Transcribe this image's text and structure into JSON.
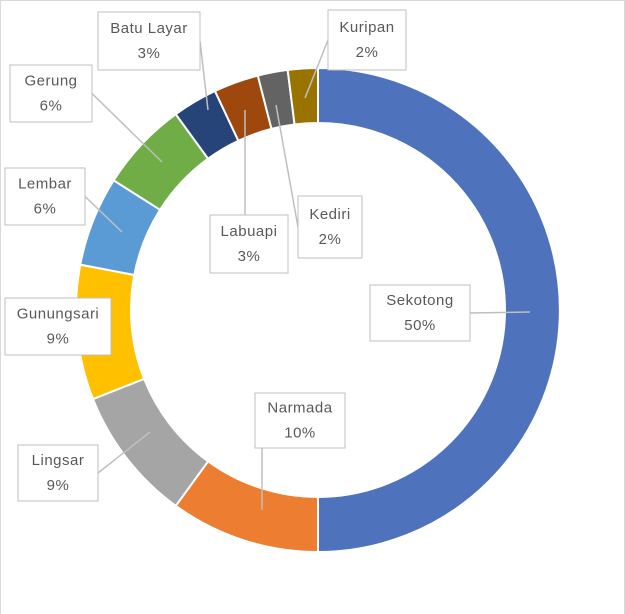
{
  "chart_data": {
    "type": "donut",
    "categories": [
      "Sekotong",
      "Narmada",
      "Lingsar",
      "Gunungsari",
      "Lembar",
      "Gerung",
      "Batu Layar",
      "Labuapi",
      "Kediri",
      "Kuripan"
    ],
    "values": [
      50,
      10,
      9,
      9,
      6,
      6,
      3,
      3,
      2,
      2
    ],
    "value_labels": [
      "50%",
      "10%",
      "9%",
      "9%",
      "6%",
      "6%",
      "3%",
      "3%",
      "2%",
      "2%"
    ],
    "colors": [
      "#4f72bd",
      "#ed7d31",
      "#a5a5a5",
      "#ffc000",
      "#5b9bd5",
      "#70ad47",
      "#264478",
      "#9e480e",
      "#636363",
      "#997300"
    ]
  }
}
